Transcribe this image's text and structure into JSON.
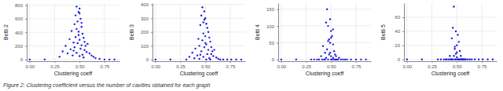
{
  "caption": "Figure 2: Clustering coefficient versus the number of cavities obtained for each graph",
  "chart_data": [
    {
      "type": "scatter",
      "x_label": "Clustering coeff",
      "y_label": "Betti 2",
      "color": "#1f1fe0",
      "grid": true,
      "xlim": [
        -0.03,
        0.9
      ],
      "xticks": [
        {
          "value": 0,
          "label": "0.00"
        },
        {
          "value": 0.25,
          "label": "0.25"
        },
        {
          "value": 0.5,
          "label": "0.50"
        },
        {
          "value": 0.75,
          "label": "0.75"
        }
      ],
      "ylim": [
        -25,
        830
      ],
      "yticks": [
        0,
        200,
        400,
        600,
        800
      ],
      "x": [
        0.0,
        0.15,
        0.3,
        0.33,
        0.36,
        0.38,
        0.4,
        0.41,
        0.42,
        0.43,
        0.44,
        0.45,
        0.45,
        0.46,
        0.46,
        0.47,
        0.47,
        0.48,
        0.48,
        0.49,
        0.49,
        0.5,
        0.5,
        0.5,
        0.51,
        0.51,
        0.52,
        0.52,
        0.53,
        0.53,
        0.54,
        0.55,
        0.55,
        0.56,
        0.57,
        0.58,
        0.6,
        0.62,
        0.64,
        0.66,
        0.7,
        0.75,
        0.8,
        0.85,
        0.47,
        0.49,
        0.52,
        0.44,
        0.5,
        0.54
      ],
      "values": [
        0,
        0,
        40,
        120,
        200,
        90,
        300,
        150,
        420,
        60,
        250,
        520,
        180,
        650,
        330,
        780,
        100,
        560,
        240,
        700,
        410,
        750,
        290,
        50,
        600,
        160,
        480,
        210,
        380,
        70,
        320,
        260,
        140,
        200,
        110,
        230,
        90,
        60,
        40,
        20,
        10,
        0,
        0,
        0,
        450,
        360,
        540,
        130,
        680,
        30
      ]
    },
    {
      "type": "scatter",
      "x_label": "Clustering coeff",
      "y_label": "Betti 3",
      "color": "#1f1fe0",
      "grid": true,
      "xlim": [
        -0.03,
        0.9
      ],
      "xticks": [
        {
          "value": 0,
          "label": "0.00"
        },
        {
          "value": 0.25,
          "label": "0.25"
        },
        {
          "value": 0.5,
          "label": "0.50"
        },
        {
          "value": 0.75,
          "label": "0.75"
        }
      ],
      "ylim": [
        -12,
        410
      ],
      "yticks": [
        0,
        100,
        200,
        300,
        400
      ],
      "x": [
        0.0,
        0.15,
        0.31,
        0.34,
        0.37,
        0.39,
        0.4,
        0.42,
        0.43,
        0.44,
        0.44,
        0.45,
        0.46,
        0.46,
        0.47,
        0.47,
        0.48,
        0.48,
        0.49,
        0.49,
        0.5,
        0.5,
        0.51,
        0.51,
        0.52,
        0.52,
        0.53,
        0.53,
        0.54,
        0.54,
        0.55,
        0.56,
        0.56,
        0.57,
        0.58,
        0.59,
        0.61,
        0.63,
        0.65,
        0.68,
        0.72,
        0.76,
        0.81,
        0.86,
        0.48,
        0.5,
        0.51,
        0.45,
        0.49,
        0.55
      ],
      "values": [
        0,
        0,
        0,
        20,
        50,
        10,
        80,
        30,
        150,
        5,
        100,
        250,
        60,
        320,
        140,
        380,
        20,
        270,
        90,
        350,
        170,
        300,
        110,
        0,
        230,
        40,
        200,
        70,
        160,
        10,
        130,
        90,
        40,
        60,
        25,
        70,
        15,
        5,
        0,
        0,
        0,
        0,
        0,
        0,
        190,
        120,
        260,
        35,
        290,
        0
      ]
    },
    {
      "type": "scatter",
      "x_label": "Clustering coeff",
      "y_label": "Betti 4",
      "color": "#1f1fe0",
      "grid": true,
      "xlim": [
        -0.03,
        0.9
      ],
      "xticks": [
        {
          "value": 0,
          "label": "0.00"
        },
        {
          "value": 0.25,
          "label": "0.25"
        },
        {
          "value": 0.5,
          "label": "0.50"
        },
        {
          "value": 0.75,
          "label": "0.75"
        }
      ],
      "ylim": [
        -5,
        168
      ],
      "yticks": [
        0,
        50,
        100,
        150
      ],
      "x": [
        0.0,
        0.15,
        0.3,
        0.33,
        0.36,
        0.38,
        0.4,
        0.41,
        0.42,
        0.43,
        0.44,
        0.45,
        0.45,
        0.46,
        0.46,
        0.47,
        0.47,
        0.48,
        0.48,
        0.49,
        0.49,
        0.5,
        0.5,
        0.5,
        0.51,
        0.51,
        0.52,
        0.52,
        0.53,
        0.53,
        0.54,
        0.55,
        0.55,
        0.56,
        0.57,
        0.58,
        0.6,
        0.62,
        0.64,
        0.66,
        0.7,
        0.75,
        0.8,
        0.85,
        0.47,
        0.49,
        0.52,
        0.44,
        0.5,
        0.54
      ],
      "values": [
        0,
        0,
        0,
        0,
        0,
        0,
        10,
        0,
        40,
        0,
        20,
        110,
        5,
        150,
        30,
        100,
        0,
        60,
        15,
        120,
        50,
        85,
        10,
        0,
        70,
        0,
        45,
        5,
        25,
        0,
        15,
        10,
        0,
        0,
        0,
        5,
        0,
        0,
        0,
        0,
        0,
        0,
        0,
        0,
        55,
        20,
        90,
        0,
        65,
        0
      ]
    },
    {
      "type": "scatter",
      "x_label": "Clustering coeff",
      "y_label": "Betti 5",
      "color": "#1f1fe0",
      "grid": true,
      "xlim": [
        -0.03,
        0.9
      ],
      "xticks": [
        {
          "value": 0,
          "label": "0.00"
        },
        {
          "value": 0.25,
          "label": "0.25"
        },
        {
          "value": 0.5,
          "label": "0.50"
        },
        {
          "value": 0.75,
          "label": "0.75"
        }
      ],
      "ylim": [
        -2.5,
        80
      ],
      "yticks": [
        0,
        20,
        40,
        60
      ],
      "x": [
        0.0,
        0.15,
        0.31,
        0.34,
        0.37,
        0.39,
        0.4,
        0.42,
        0.43,
        0.44,
        0.44,
        0.45,
        0.46,
        0.46,
        0.47,
        0.47,
        0.48,
        0.48,
        0.49,
        0.49,
        0.5,
        0.5,
        0.51,
        0.51,
        0.52,
        0.52,
        0.53,
        0.53,
        0.54,
        0.54,
        0.55,
        0.56,
        0.56,
        0.57,
        0.58,
        0.59,
        0.61,
        0.63,
        0.65,
        0.68,
        0.72,
        0.76,
        0.81,
        0.86,
        0.48,
        0.5,
        0.51,
        0.45,
        0.49,
        0.55
      ],
      "values": [
        0,
        0,
        0,
        0,
        0,
        0,
        0,
        0,
        5,
        0,
        0,
        30,
        0,
        45,
        5,
        75,
        0,
        15,
        0,
        40,
        10,
        20,
        0,
        0,
        25,
        0,
        12,
        0,
        5,
        0,
        0,
        0,
        0,
        0,
        0,
        0,
        0,
        0,
        0,
        0,
        0,
        0,
        0,
        0,
        18,
        3,
        35,
        0,
        8,
        0
      ]
    }
  ]
}
